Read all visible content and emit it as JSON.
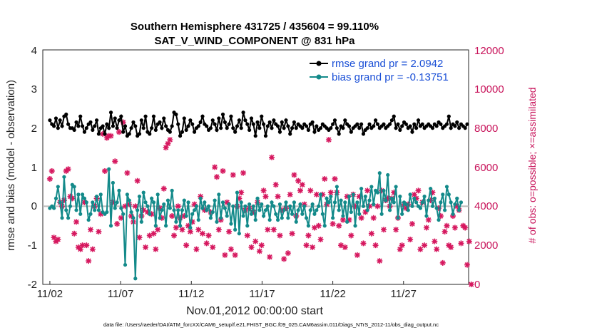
{
  "chart_data": {
    "type": "line",
    "title": "Southern Hemisphere 431725 / 435604 = 99.110%",
    "subtitle": "SAT_V_WIND_COMPONENT @ 831 hPa",
    "xlabel": "Nov.01,2012 00:00:00 start",
    "ylabel": "rmse and bias (model - observation)",
    "ylabel_right": "# of obs: o=possible; ×=assimilated",
    "xlim": [
      0.5,
      30.6
    ],
    "ylim": [
      -2,
      4
    ],
    "ylim_right": [
      0,
      12000
    ],
    "x_ticks": [
      1,
      6,
      11,
      16,
      21,
      26
    ],
    "x_tick_labels": [
      "11/02",
      "11/07",
      "11/12",
      "11/17",
      "11/22",
      "11/27"
    ],
    "y_ticks": [
      "-2",
      "-1",
      "0",
      "1",
      "2",
      "3",
      "4"
    ],
    "y_ticks_right": [
      "0",
      "2000",
      "4000",
      "6000",
      "8000",
      "10000",
      "12000"
    ],
    "legend_position": "top-right",
    "zero_line": 0,
    "series": [
      {
        "name": "rmse grand pr = 2.0942",
        "color": "#000000",
        "axis": "left",
        "values": [
          2.2,
          2.1,
          2.05,
          2.25,
          2.0,
          2.2,
          2.05,
          2.3,
          2.35,
          2.1,
          2.0,
          2.0,
          1.95,
          2.15,
          2.05,
          2.3,
          2.05,
          1.9,
          2.0,
          2.1,
          2.15,
          1.95,
          2.05,
          2.2,
          1.85,
          2.0,
          2.05,
          1.85,
          2.1,
          2.0,
          2.4,
          2.05,
          2.25,
          2.0,
          2.2,
          2.3,
          1.9,
          2.05,
          1.8,
          1.85,
          2.0,
          2.15,
          2.05,
          1.8,
          1.85,
          2.2,
          2.0,
          2.3,
          1.9,
          1.85,
          2.0,
          2.3,
          1.95,
          2.1,
          2.15,
          2.0,
          2.25,
          2.05,
          1.95,
          1.9,
          2.05,
          2.4,
          2.35,
          2.1,
          1.8,
          1.9,
          2.25,
          1.95,
          2.05,
          2.2,
          2.1,
          1.9,
          2.0,
          2.05,
          2.15,
          2.3,
          2.1,
          2.05,
          1.95,
          2.0,
          2.2,
          2.1,
          1.95,
          2.25,
          2.0,
          2.35,
          2.15,
          2.0,
          2.1,
          2.3,
          2.0,
          1.9,
          2.05,
          2.2,
          2.0,
          2.4,
          2.2,
          2.1,
          1.95,
          2.25,
          2.1,
          1.8,
          2.15,
          2.0,
          2.3,
          2.1,
          1.8,
          2.05,
          2.15,
          2.0,
          2.2,
          2.1,
          2.05,
          1.9,
          2.15,
          2.0,
          2.2,
          2.05,
          1.85,
          2.0,
          2.15,
          2.0,
          2.1,
          2.05,
          2.0,
          2.1,
          2.05,
          1.95,
          2.1,
          2.15,
          1.9,
          2.05,
          1.95,
          2.0,
          2.1,
          2.05,
          2.0,
          1.95,
          2.0,
          2.1,
          2.2,
          2.0,
          1.85,
          2.05,
          2.0,
          2.2,
          2.1,
          2.05,
          1.9,
          2.0,
          2.05,
          2.1,
          2.0,
          2.1,
          1.85,
          1.95,
          2.0,
          2.1,
          2.0,
          2.05,
          2.2,
          2.1,
          2.0,
          2.05,
          2.1,
          2.0,
          2.05,
          2.1,
          2.2,
          2.3,
          2.0,
          2.1,
          1.95,
          2.05,
          2.15,
          2.1,
          2.0,
          2.05,
          1.9,
          2.1,
          2.0,
          2.2,
          2.05,
          2.1,
          2.0,
          2.05,
          2.1,
          2.05,
          2.0,
          2.1,
          2.05,
          2.15,
          2.1,
          2.0,
          2.05,
          2.1,
          2.3,
          2.0,
          2.1,
          2.05,
          2.15,
          2.0,
          2.1,
          2.05,
          2.0,
          2.1
        ]
      },
      {
        "name": "bias grand pr = -0.13751",
        "color": "#138a8a",
        "axis": "left",
        "values": [
          -0.05,
          0.0,
          -0.05,
          0.2,
          0.5,
          0.1,
          -0.3,
          0.75,
          -0.1,
          -0.3,
          0.0,
          0.55,
          0.5,
          -0.1,
          0.3,
          -0.2,
          0.3,
          0.2,
          0.1,
          -0.35,
          -0.2,
          0.1,
          -0.1,
          0.25,
          -0.1,
          0.3,
          -0.15,
          -0.2,
          -0.15,
          0.95,
          -0.5,
          0.6,
          -0.05,
          0.1,
          0.4,
          -0.05,
          -0.2,
          -1.5,
          0.3,
          0.15,
          -0.15,
          -0.3,
          -1.85,
          -0.1,
          0.25,
          -0.4,
          0.35,
          0.1,
          0.0,
          -0.2,
          0.2,
          0.1,
          -0.5,
          0.3,
          -0.3,
          -0.1,
          0.05,
          -0.5,
          0.15,
          -0.05,
          0.4,
          -0.1,
          -0.4,
          -0.1,
          -0.5,
          -0.1,
          0.15,
          -0.25,
          0.1,
          -0.55,
          -0.2,
          -0.1,
          0.0,
          -0.35,
          0.2,
          -0.05,
          0.1,
          -0.1,
          0.0,
          -0.3,
          -0.15,
          0.15,
          -0.4,
          0.3,
          -0.3,
          0.1,
          -0.05,
          -0.25,
          0.05,
          -0.45,
          0.0,
          -0.6,
          0.35,
          -0.7,
          0.1,
          -0.25,
          0.0,
          -0.5,
          0.05,
          -0.2,
          0.0,
          -0.35,
          0.2,
          -0.1,
          0.05,
          -0.25,
          -0.1,
          0.0,
          -0.35,
          0.1,
          0.0,
          -0.2,
          -0.35,
          0.05,
          -0.3,
          -0.1,
          0.1,
          -0.3,
          0.0,
          -0.2,
          0.1,
          -0.4,
          -0.1,
          0.05,
          -0.2,
          0.0,
          -0.3,
          -0.5,
          -0.1,
          0.05,
          -0.2,
          -0.1,
          0.0,
          0.3,
          -0.2,
          -0.5,
          0.2,
          0.1,
          0.25,
          -0.3,
          0.1,
          0.5,
          -0.1,
          0.15,
          -0.25,
          0.1,
          -0.4,
          0.25,
          -0.15,
          0.3,
          -0.5,
          0.1,
          -0.2,
          0.45,
          0.0,
          0.25,
          -0.1,
          0.15,
          0.5,
          0.05,
          0.4,
          0.35,
          0.85,
          -0.2,
          0.4,
          0.15,
          0.8,
          -0.1,
          0.2,
          0.1,
          0.5,
          -0.3,
          0.25,
          -0.2,
          0.1,
          0.05,
          -0.1,
          0.3,
          0.0,
          0.2,
          0.1,
          0.0,
          -0.05,
          0.1,
          0.25,
          -0.25,
          0.15,
          0.45,
          0.0,
          0.2,
          -0.05,
          -0.35,
          0.1,
          0.3,
          -0.1,
          0.5,
          0.3,
          0.1,
          -0.2,
          0.05,
          0.2,
          -0.1,
          0.1
        ]
      },
      {
        "name": "# of obs assimilated",
        "color": "#d6185f",
        "axis": "right",
        "values": [
          5400,
          5800,
          2400,
          2200,
          2300,
          4200,
          4000,
          4300,
          5800,
          5900,
          4500,
          4400,
          2600,
          3200,
          1900,
          1800,
          2000,
          4200,
          2000,
          1200,
          2800,
          1800,
          4000,
          4400,
          2700,
          3600,
          7700,
          5800,
          7500,
          7600,
          7600,
          4200,
          6300,
          3100,
          7800,
          3400,
          8300,
          4000,
          5700,
          4100,
          3500,
          3200,
          4000,
          5300,
          2400,
          3500,
          3800,
          1900,
          3700,
          2500,
          3600,
          2600,
          1800,
          2800,
          3900,
          3400,
          4900,
          7000,
          7200,
          7400,
          3500,
          2500,
          2900,
          4000,
          3400,
          2800,
          3500,
          2000,
          3000,
          2700,
          3200,
          4100,
          1800,
          2800,
          4500,
          2600,
          3800,
          2100,
          2500,
          3700,
          1900,
          6000,
          5500,
          2800,
          3300,
          5800,
          1500,
          4200,
          2700,
          1800,
          5600,
          1500,
          4000,
          4400,
          4700,
          5700,
          3800,
          2500,
          3900,
          1900,
          3700,
          2200,
          4200,
          1700,
          2000,
          4800,
          4500,
          2800,
          1400,
          6500,
          2800,
          5100,
          4500,
          2500,
          3800,
          1300,
          3900,
          1600,
          4600,
          2600,
          5600,
          3500,
          5300,
          4800,
          5100,
          4100,
          2000,
          2500,
          4800,
          1900,
          2900,
          4600,
          3000,
          2300,
          4600,
          5400,
          4100,
          7400,
          4700,
          3100,
          5400,
          4700,
          3000,
          2000,
          3300,
          1900,
          4500,
          3300,
          2500,
          4600,
          4000,
          1500,
          4500,
          3400,
          2100,
          3700,
          4800,
          4000,
          2600,
          3400,
          2000,
          4000,
          1200,
          4800,
          2800,
          4300,
          4400,
          4000,
          4400,
          4700,
          2800,
          3400,
          1800,
          2000,
          4100,
          3900,
          4100,
          2300,
          3100,
          4600,
          4400,
          4800,
          1800,
          4200,
          2000,
          2900,
          3300,
          4300,
          4700,
          2200,
          1800,
          3900,
          3500,
          1100,
          2700,
          3000,
          2000,
          1900,
          3500,
          2900,
          4000,
          3800,
          2100,
          3000,
          2900,
          1000,
          2200,
          0
        ]
      }
    ]
  },
  "footer": "data file: /Users/raeder/DAI/ATM_forcXX/CAM6_setup/f.e21.FHIST_BGC.f09_025.CAM6assim.011/Diags_NTrS_2012-11/obs_diag_output.nc",
  "colors": {
    "rmse": "#000000",
    "bias": "#138a8a",
    "obs": "#d6185f",
    "zero": "#bbbbbb",
    "right_axis": "#c8135a"
  }
}
